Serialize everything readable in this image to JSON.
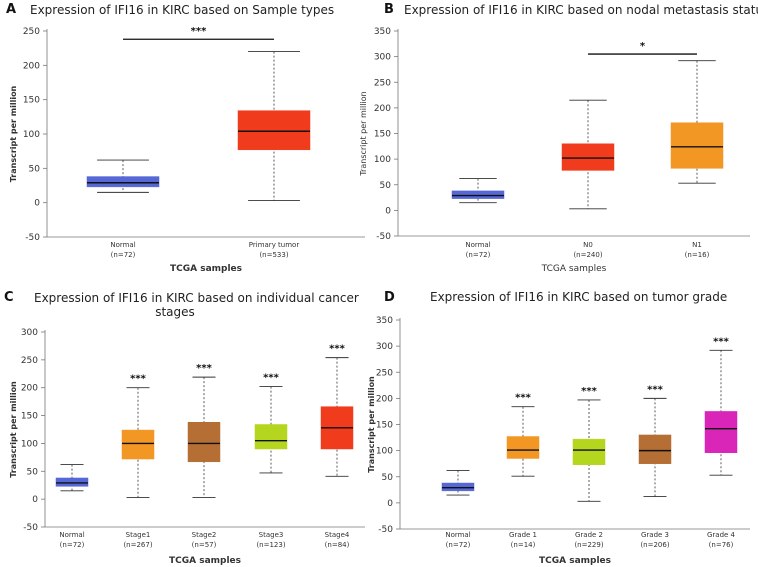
{
  "chart_data": [
    {
      "panel": "A",
      "type": "boxplot",
      "title": "Expression of IFI16 in KIRC based on Sample types",
      "ylabel": "Transcript per million",
      "xlabel": "TCGA samples",
      "ylim": [
        -50,
        250
      ],
      "yticks": [
        -50,
        0,
        50,
        100,
        150,
        200,
        250
      ],
      "categories": [
        {
          "name": "Normal",
          "n": "(n=72)",
          "min": 15,
          "q1": 23,
          "median": 29,
          "q3": 38,
          "max": 62,
          "color": "#5667d6"
        },
        {
          "name": "Primary tumor",
          "n": "(n=533)",
          "min": 3,
          "q1": 77,
          "median": 104,
          "q3": 134,
          "max": 220,
          "color": "#f03c1c"
        }
      ],
      "significance": [
        {
          "label": "***",
          "from": 0,
          "to": 1,
          "y": 238
        }
      ]
    },
    {
      "panel": "B",
      "type": "boxplot",
      "title": "Expression of IFI16 in KIRC based on nodal metastasis status",
      "ylabel": "Transcript per million",
      "xlabel": "TCGA samples",
      "ylim": [
        -50,
        350
      ],
      "yticks": [
        -50,
        0,
        50,
        100,
        150,
        200,
        250,
        300,
        350
      ],
      "categories": [
        {
          "name": "Normal",
          "n": "(n=72)",
          "min": 15,
          "q1": 23,
          "median": 29,
          "q3": 38,
          "max": 62,
          "color": "#5667d6"
        },
        {
          "name": "N0",
          "n": "(n=240)",
          "min": 3,
          "q1": 78,
          "median": 102,
          "q3": 130,
          "max": 215,
          "color": "#f03c1c"
        },
        {
          "name": "N1",
          "n": "(n=16)",
          "min": 53,
          "q1": 82,
          "median": 124,
          "q3": 171,
          "max": 292,
          "color": "#f29624"
        }
      ],
      "significance": [
        {
          "label": "*",
          "from": 1,
          "to": 2,
          "y": 305
        }
      ]
    },
    {
      "panel": "C",
      "type": "boxplot",
      "title": "Expression of IFI16 in KIRC based on individual cancer",
      "title_line2": "stages",
      "ylabel": "Transcript per million",
      "xlabel": "TCGA samples",
      "ylim": [
        -50,
        300
      ],
      "yticks": [
        -50,
        0,
        50,
        100,
        150,
        200,
        250,
        300
      ],
      "categories": [
        {
          "name": "Normal",
          "n": "(n=72)",
          "min": 15,
          "q1": 23,
          "median": 29,
          "q3": 38,
          "max": 62,
          "color": "#5667d6",
          "sig": ""
        },
        {
          "name": "Stage1",
          "n": "(n=267)",
          "min": 3,
          "q1": 72,
          "median": 100,
          "q3": 124,
          "max": 200,
          "color": "#f29624",
          "sig": "***"
        },
        {
          "name": "Stage2",
          "n": "(n=57)",
          "min": 3,
          "q1": 67,
          "median": 100,
          "q3": 138,
          "max": 219,
          "color": "#b56e34",
          "sig": "***"
        },
        {
          "name": "Stage3",
          "n": "(n=123)",
          "min": 47,
          "q1": 90,
          "median": 105,
          "q3": 134,
          "max": 202,
          "color": "#b5d61e",
          "sig": "***"
        },
        {
          "name": "Stage4",
          "n": "(n=84)",
          "min": 41,
          "q1": 90,
          "median": 128,
          "q3": 166,
          "max": 254,
          "color": "#f03c1c",
          "sig": "***"
        }
      ]
    },
    {
      "panel": "D",
      "type": "boxplot",
      "title": "Expression of IFI16 in KIRC based on tumor grade",
      "ylabel": "Transcript per million",
      "xlabel": "TCGA samples",
      "ylim": [
        -50,
        350
      ],
      "yticks": [
        -50,
        0,
        50,
        100,
        150,
        200,
        250,
        300,
        350
      ],
      "categories": [
        {
          "name": "Normal",
          "n": "(n=72)",
          "min": 15,
          "q1": 23,
          "median": 29,
          "q3": 38,
          "max": 62,
          "color": "#5667d6",
          "sig": ""
        },
        {
          "name": "Grade 1",
          "n": "(n=14)",
          "min": 51,
          "q1": 85,
          "median": 101,
          "q3": 127,
          "max": 184,
          "color": "#f29624",
          "sig": "***"
        },
        {
          "name": "Grade 2",
          "n": "(n=229)",
          "min": 3,
          "q1": 73,
          "median": 101,
          "q3": 122,
          "max": 197,
          "color": "#b5d61e",
          "sig": "***"
        },
        {
          "name": "Grade 3",
          "n": "(n=206)",
          "min": 12,
          "q1": 75,
          "median": 100,
          "q3": 130,
          "max": 200,
          "color": "#b56e34",
          "sig": "***"
        },
        {
          "name": "Grade 4",
          "n": "(n=76)",
          "min": 53,
          "q1": 96,
          "median": 142,
          "q3": 175,
          "max": 292,
          "color": "#d925b8",
          "sig": "***"
        }
      ]
    }
  ]
}
